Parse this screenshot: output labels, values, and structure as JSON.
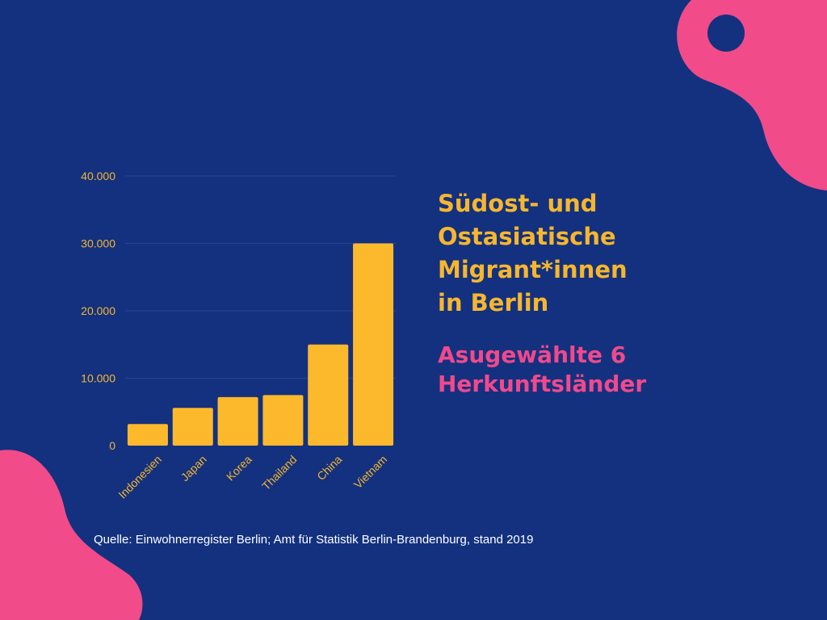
{
  "colors": {
    "background": "#13317f",
    "bar": "#fdb92c",
    "axis_text": "#f6b62e",
    "title": "#f6b62e",
    "subtitle": "#f0498c",
    "decoration": "#f24b8a",
    "grid": "#2a4592"
  },
  "title": "Südost- und\nOstasiatische\nMigrant*innen\nin Berlin",
  "subtitle": "Asugewählte 6\nHerkunftsländer",
  "source": "Quelle: Einwohnerregister Berlin; Amt für Statistik Berlin-Brandenburg, stand 2019",
  "chart_data": {
    "type": "bar",
    "categories": [
      "Indonesien",
      "Japan",
      "Korea",
      "Thailand",
      "China",
      "Vietnam"
    ],
    "values": [
      3200,
      5600,
      7200,
      7500,
      15000,
      30000
    ],
    "ylim": [
      0,
      40000
    ],
    "yticks": [
      0,
      10000,
      20000,
      30000,
      40000
    ],
    "ytick_labels": [
      "0",
      "10.000",
      "20.000",
      "30.000",
      "40.000"
    ],
    "grid": true,
    "legend": "none"
  }
}
